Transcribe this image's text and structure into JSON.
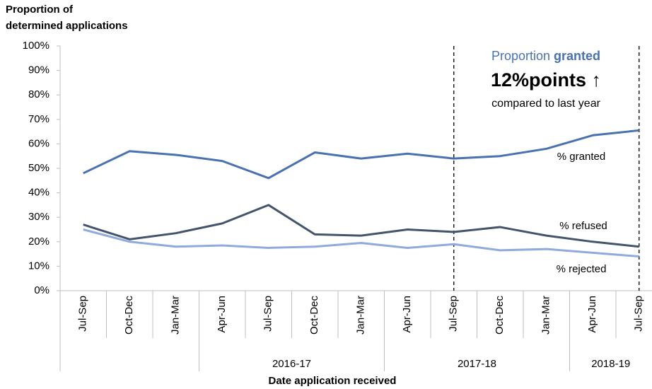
{
  "chart_data": {
    "type": "line",
    "y_label": [
      "Proportion of",
      "determined applications"
    ],
    "x_label": "Date application received",
    "categories": [
      "Jul-Sep",
      "Oct-Dec",
      "Jan-Mar",
      "Apr-Jun",
      "Jul-Sep",
      "Oct-Dec",
      "Jan-Mar",
      "Apr-Jun",
      "Jul-Sep",
      "Oct-Dec",
      "Jan-Mar",
      "Apr-Jun",
      "Jul-Sep"
    ],
    "groups": [
      {
        "label": "2016-17",
        "from": 3,
        "to": 6
      },
      {
        "label": "2017-18",
        "from": 7,
        "to": 10
      },
      {
        "label": "2018-19",
        "from": 11,
        "to": 12
      }
    ],
    "series": [
      {
        "name": "% granted",
        "color": "#4a72b0",
        "values": [
          48,
          57,
          55.5,
          53,
          46,
          56.5,
          54,
          56,
          54,
          55,
          58,
          63.5,
          65.5
        ]
      },
      {
        "name": "% refused",
        "color": "#44546a",
        "values": [
          27,
          21,
          23.5,
          27.5,
          35,
          23,
          22.5,
          25,
          24,
          26,
          22.5,
          20,
          18
        ]
      },
      {
        "name": "% rejected",
        "color": "#8faadc",
        "values": [
          25,
          20,
          18,
          18.5,
          17.5,
          18,
          19.5,
          17.5,
          19,
          16.5,
          17,
          15.5,
          14
        ]
      }
    ],
    "ylim": [
      0,
      100
    ],
    "yticks": [
      {
        "value": 0,
        "label": "0%"
      },
      {
        "value": 10,
        "label": "10%"
      },
      {
        "value": 20,
        "label": "20%"
      },
      {
        "value": 30,
        "label": "30%"
      },
      {
        "value": 40,
        "label": "40%"
      },
      {
        "value": 50,
        "label": "50%"
      },
      {
        "value": 60,
        "label": "60%"
      },
      {
        "value": 70,
        "label": "70%"
      },
      {
        "value": 80,
        "label": "80%"
      },
      {
        "value": 90,
        "label": "90%"
      },
      {
        "value": 100,
        "label": "100%"
      }
    ],
    "grid": false,
    "dashed_lines_at": [
      8,
      12
    ],
    "annotation": {
      "line1": [
        "Proportion ",
        "granted"
      ],
      "line2": "12%points ↑",
      "line3": "compared to last year"
    }
  }
}
